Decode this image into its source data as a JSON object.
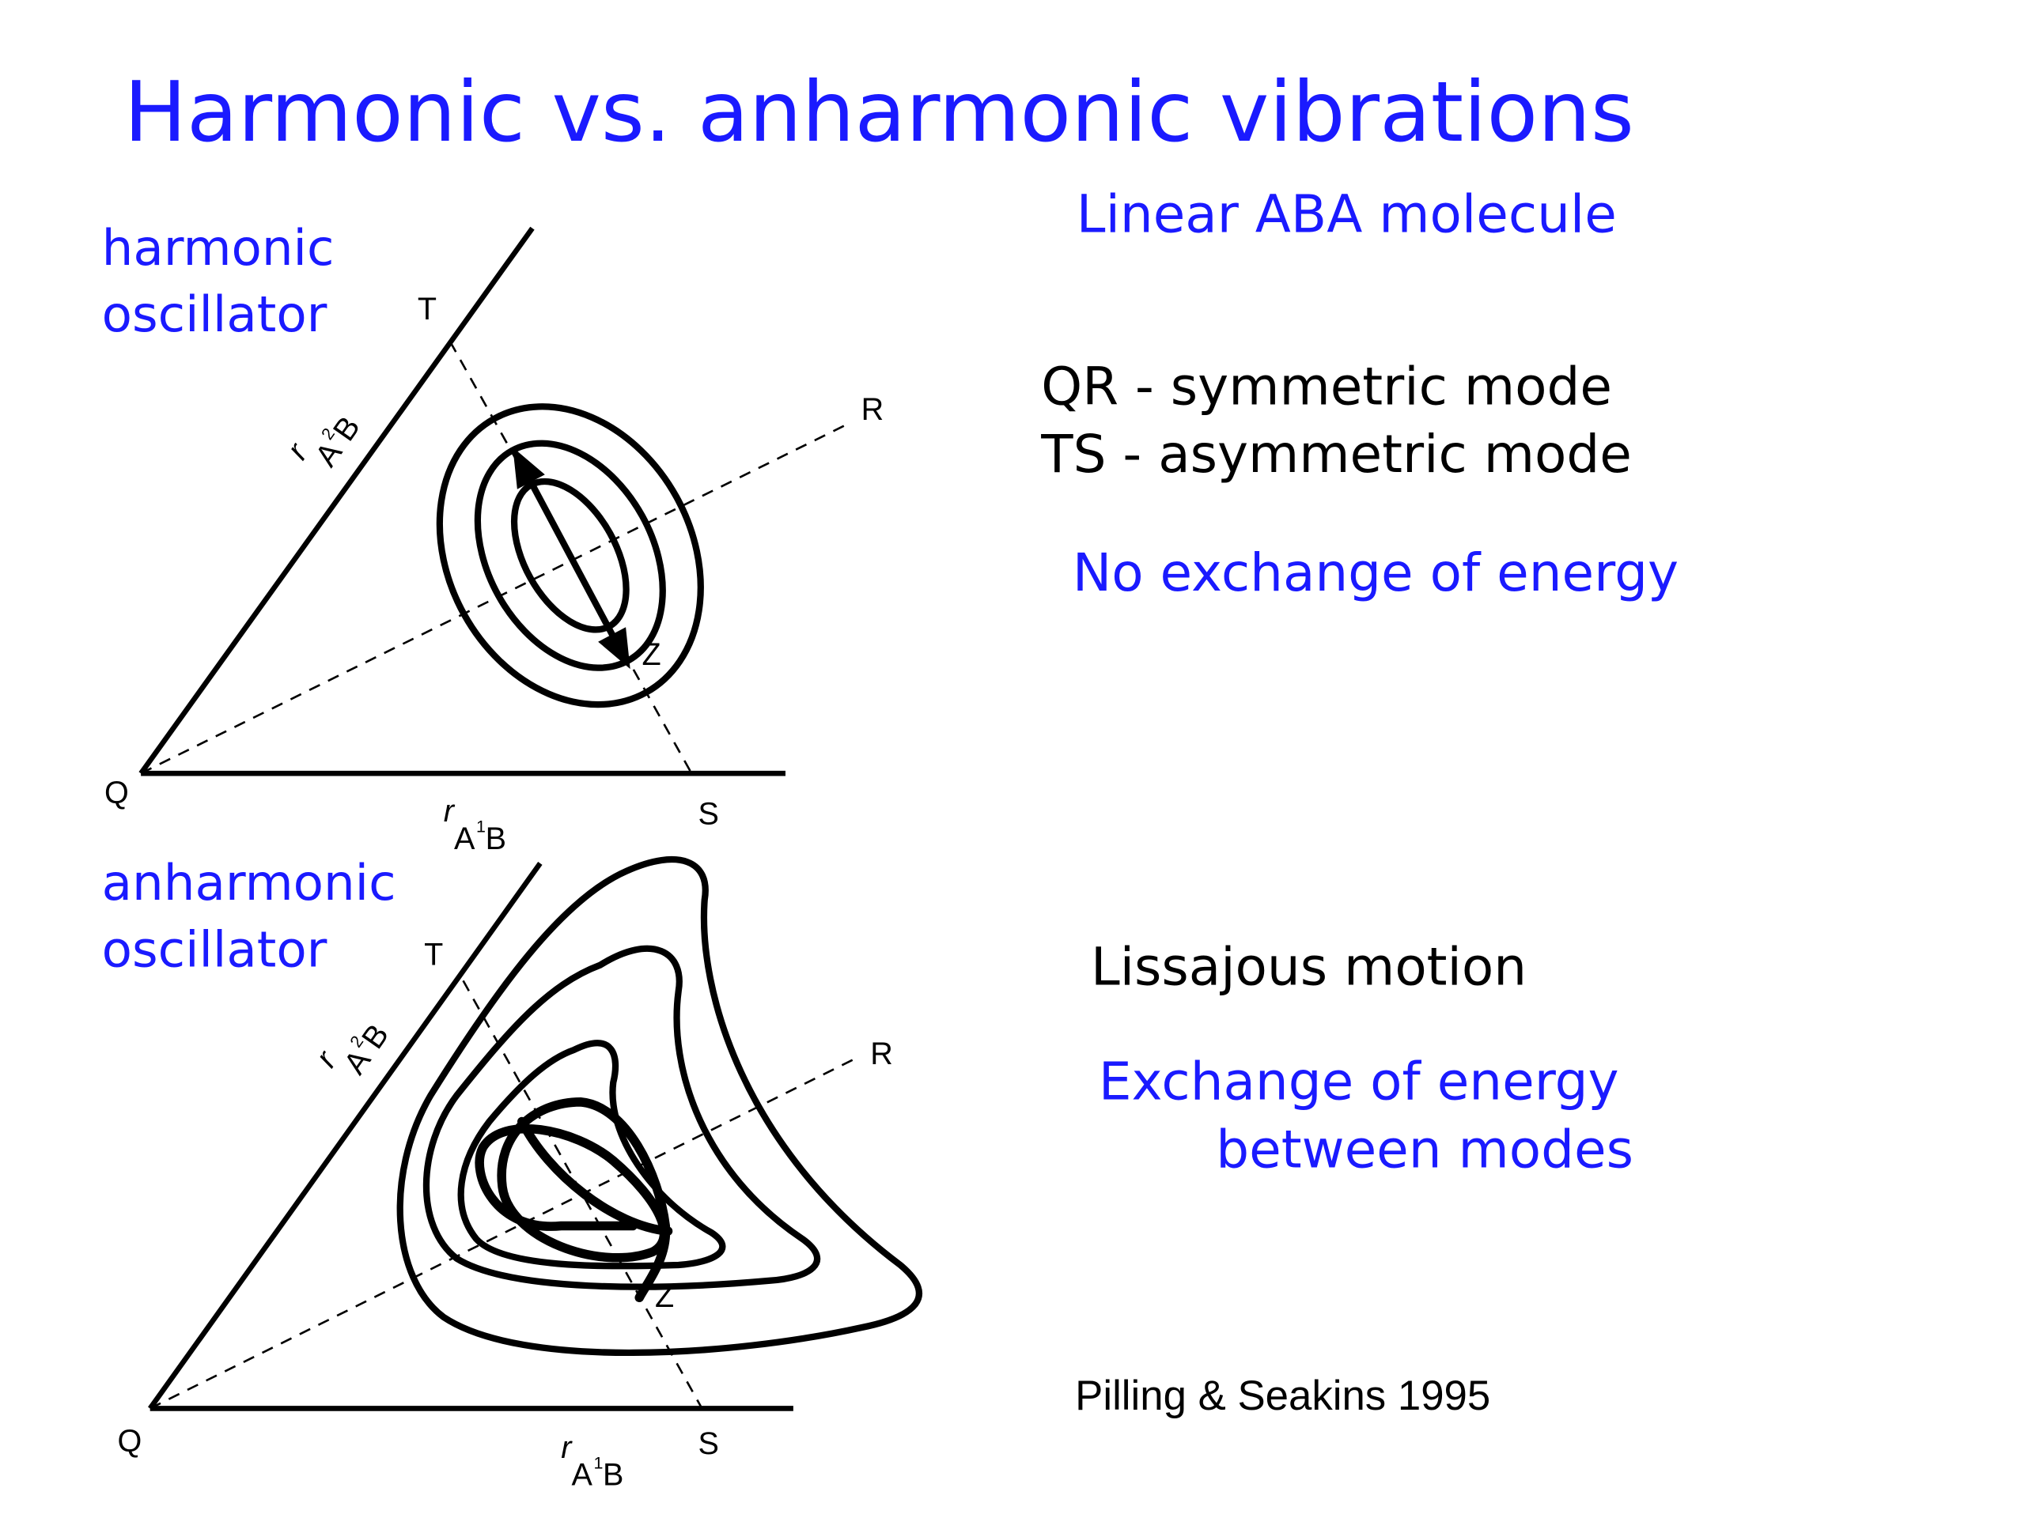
{
  "title": "Harmonic vs. anharmonic vibrations",
  "harmonic": {
    "label": [
      "harmonic",
      "oscillator"
    ],
    "points": [
      "T",
      "R",
      "Q",
      "S",
      "Z"
    ],
    "x_axis_label": [
      "r",
      "A",
      "1",
      "B"
    ],
    "y_axis_label": [
      "r",
      "A",
      "2",
      "B"
    ]
  },
  "anharmonic": {
    "label": [
      "anharmonic",
      "oscillator"
    ],
    "points": [
      "T",
      "R",
      "Q",
      "S",
      "Z"
    ],
    "x_axis_label": [
      "r",
      "A",
      "1",
      "B"
    ],
    "y_axis_label": [
      "r",
      "A",
      "2",
      "B"
    ]
  },
  "harmonic_notes": {
    "heading": "Linear ABA molecule",
    "modes": [
      "QR - symmetric mode",
      "TS  - asymmetric mode"
    ],
    "energy": "No exchange of energy"
  },
  "anharmonic_notes": {
    "motion": "Lissajous motion",
    "energy": [
      "Exchange of energy",
      "between modes"
    ]
  },
  "citation": "Pilling & Seakins 1995"
}
